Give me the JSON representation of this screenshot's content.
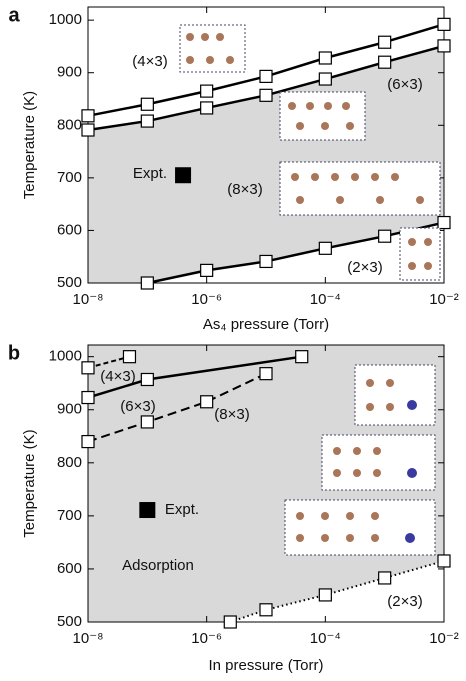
{
  "chart_data": [
    {
      "type": "line",
      "panel": "a",
      "xlabel": "As₄ pressure (Torr)",
      "ylabel": "Temperature (K)",
      "log_x": true,
      "xlim": [
        1e-08,
        0.01
      ],
      "ylim": [
        500,
        1025
      ],
      "xticks": [
        {
          "value": 1e-08,
          "label": "10⁻⁸"
        },
        {
          "value": 1e-06,
          "label": "10⁻⁶"
        },
        {
          "value": 0.0001,
          "label": "10⁻⁴"
        },
        {
          "value": 0.01,
          "label": "10⁻²"
        }
      ],
      "yticks": [
        500,
        600,
        700,
        800,
        900,
        1000
      ],
      "fill_color": "#d9d9d9",
      "series": [
        {
          "color": "#000000",
          "dash": "solid",
          "x": [
            1e-08,
            1e-07,
            1e-06,
            1e-05,
            0.0001,
            0.001,
            0.01
          ],
          "values": [
            818,
            840,
            865,
            893,
            928,
            958,
            992
          ]
        },
        {
          "color": "#000000",
          "dash": "solid",
          "x": [
            1e-08,
            1e-07,
            1e-06,
            1e-05,
            0.0001,
            0.001,
            0.01
          ],
          "values": [
            791,
            808,
            833,
            857,
            888,
            920,
            951
          ]
        },
        {
          "color": "#000000",
          "dash": "solid",
          "x": [
            1e-07,
            1e-06,
            1e-05,
            0.0001,
            0.001,
            0.01
          ],
          "values": [
            500,
            524,
            541,
            566,
            589,
            615
          ]
        }
      ],
      "expt": {
        "x": 4e-07,
        "y": 705
      },
      "annotations": [
        "(4×3)",
        "(6×3)",
        "(8×3)",
        "(2×3)",
        "Expt."
      ]
    },
    {
      "type": "line",
      "panel": "b",
      "xlabel": "In pressure (Torr)",
      "ylabel": "Temperature (K)",
      "log_x": true,
      "xlim": [
        1e-08,
        0.01
      ],
      "ylim": [
        500,
        1022
      ],
      "xticks": [
        {
          "value": 1e-08,
          "label": "10⁻⁸"
        },
        {
          "value": 1e-06,
          "label": "10⁻⁶"
        },
        {
          "value": 0.0001,
          "label": "10⁻⁴"
        },
        {
          "value": 0.01,
          "label": "10⁻²"
        }
      ],
      "yticks": [
        500,
        600,
        700,
        800,
        900,
        1000
      ],
      "fill_color": "#d9d9d9",
      "series": [
        {
          "color": "#000000",
          "dash": "dashed-short",
          "x": [
            1e-08,
            5e-08
          ],
          "values": [
            979,
            1000
          ]
        },
        {
          "color": "#000000",
          "dash": "solid",
          "x": [
            1e-08,
            1e-07,
            4e-05
          ],
          "values": [
            923,
            957,
            1000
          ]
        },
        {
          "color": "#000000",
          "dash": "dashed",
          "x": [
            1e-08,
            1e-07,
            1e-06,
            1e-05
          ],
          "values": [
            840,
            877,
            915,
            968
          ]
        },
        {
          "color": "#000000",
          "dash": "dotted",
          "x": [
            2.5e-06,
            1e-05,
            0.0001,
            0.001,
            0.01
          ],
          "values": [
            500,
            523,
            551,
            583,
            615
          ]
        }
      ],
      "expt": {
        "x": 1e-07,
        "y": 711
      },
      "annotations": [
        "(4×3)",
        "(6×3)",
        "(8×3)",
        "(2×3)",
        "Expt.",
        "Adsorption"
      ]
    }
  ]
}
